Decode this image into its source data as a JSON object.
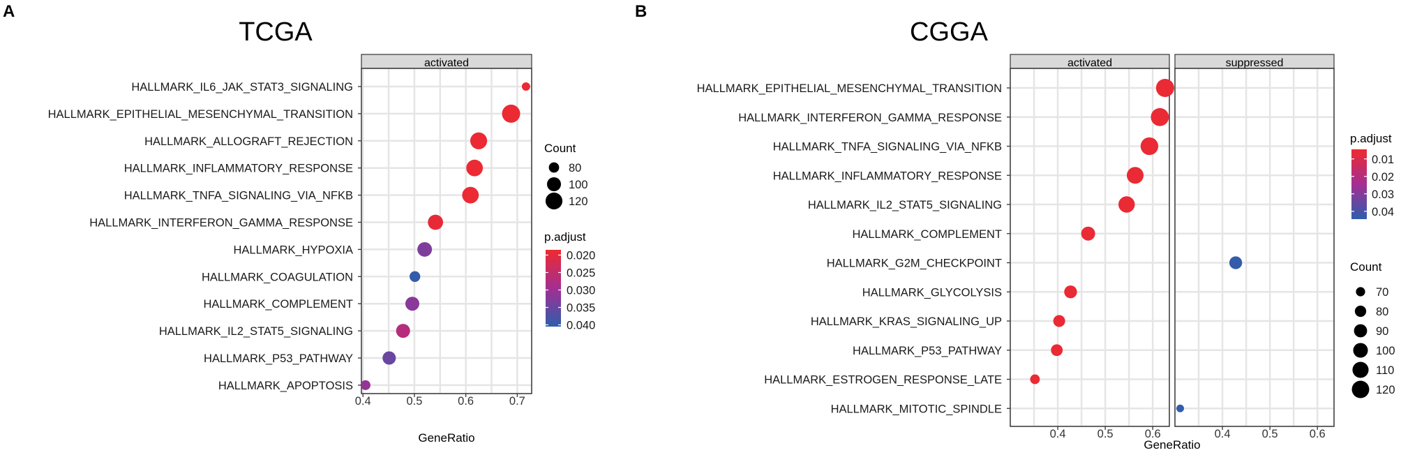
{
  "colors": {
    "high": "#ee2a2f",
    "mid": "#a42e93",
    "low": "#2e5eac",
    "grid": "#e5e5e5",
    "strip": "#d9d9d9"
  },
  "chart_data": [
    {
      "type": "scatter",
      "panel_label": "A",
      "title": "TCGA",
      "xlabel": "GeneRatio",
      "xticks": [
        0.4,
        0.5,
        0.6,
        0.7
      ],
      "xlim": [
        0.397,
        0.728
      ],
      "facets": [
        "activated"
      ],
      "categories": [
        "HALLMARK_IL6_JAK_STAT3_SIGNALING",
        "HALLMARK_EPITHELIAL_MESENCHYMAL_TRANSITION",
        "HALLMARK_ALLOGRAFT_REJECTION",
        "HALLMARK_INFLAMMATORY_RESPONSE",
        "HALLMARK_TNFA_SIGNALING_VIA_NFKB",
        "HALLMARK_INTERFERON_GAMMA_RESPONSE",
        "HALLMARK_HYPOXIA",
        "HALLMARK_COAGULATION",
        "HALLMARK_COMPLEMENT",
        "HALLMARK_IL2_STAT5_SIGNALING",
        "HALLMARK_P53_PATHWAY",
        "HALLMARK_APOPTOSIS"
      ],
      "points": [
        {
          "term": 0,
          "facet": 0,
          "x": 0.717,
          "count": 72,
          "padj": 0.019
        },
        {
          "term": 1,
          "facet": 0,
          "x": 0.688,
          "count": 130,
          "padj": 0.019
        },
        {
          "term": 2,
          "facet": 0,
          "x": 0.625,
          "count": 120,
          "padj": 0.019
        },
        {
          "term": 3,
          "facet": 0,
          "x": 0.617,
          "count": 118,
          "padj": 0.019
        },
        {
          "term": 4,
          "facet": 0,
          "x": 0.609,
          "count": 118,
          "padj": 0.019
        },
        {
          "term": 5,
          "facet": 0,
          "x": 0.541,
          "count": 108,
          "padj": 0.0195
        },
        {
          "term": 6,
          "facet": 0,
          "x": 0.52,
          "count": 104,
          "padj": 0.033
        },
        {
          "term": 7,
          "facet": 0,
          "x": 0.501,
          "count": 82,
          "padj": 0.04
        },
        {
          "term": 8,
          "facet": 0,
          "x": 0.496,
          "count": 100,
          "padj": 0.032
        },
        {
          "term": 9,
          "facet": 0,
          "x": 0.478,
          "count": 100,
          "padj": 0.027
        },
        {
          "term": 10,
          "facet": 0,
          "x": 0.451,
          "count": 96,
          "padj": 0.035
        },
        {
          "term": 11,
          "facet": 0,
          "x": 0.405,
          "count": 78,
          "padj": 0.031
        }
      ],
      "size_legend": {
        "title": "Count",
        "values": [
          80,
          100,
          120
        ],
        "range": [
          72,
          130
        ]
      },
      "color_legend": {
        "title": "p.adjust",
        "ticks": [
          0.02,
          0.025,
          0.03,
          0.035,
          0.04
        ],
        "tick_labels": [
          "0.020",
          "0.025",
          "0.030",
          "0.035",
          "0.040"
        ],
        "range": [
          0.0185,
          0.0405
        ]
      }
    },
    {
      "type": "scatter",
      "panel_label": "B",
      "title": "CGGA",
      "xlabel": "GeneRatio",
      "xticks": [
        0.4,
        0.5,
        0.6
      ],
      "xlim": [
        0.3,
        0.635
      ],
      "facets": [
        "activated",
        "suppressed"
      ],
      "categories": [
        "HALLMARK_EPITHELIAL_MESENCHYMAL_TRANSITION",
        "HALLMARK_INTERFERON_GAMMA_RESPONSE",
        "HALLMARK_TNFA_SIGNALING_VIA_NFKB",
        "HALLMARK_INFLAMMATORY_RESPONSE",
        "HALLMARK_IL2_STAT5_SIGNALING",
        "HALLMARK_COMPLEMENT",
        "HALLMARK_G2M_CHECKPOINT",
        "HALLMARK_GLYCOLYSIS",
        "HALLMARK_KRAS_SIGNALING_UP",
        "HALLMARK_P53_PATHWAY",
        "HALLMARK_ESTROGEN_RESPONSE_LATE",
        "HALLMARK_MITOTIC_SPINDLE"
      ],
      "points": [
        {
          "term": 0,
          "facet": 0,
          "x": 0.626,
          "count": 126,
          "padj": 0.005
        },
        {
          "term": 1,
          "facet": 0,
          "x": 0.615,
          "count": 125,
          "padj": 0.005
        },
        {
          "term": 2,
          "facet": 0,
          "x": 0.593,
          "count": 122,
          "padj": 0.005
        },
        {
          "term": 3,
          "facet": 0,
          "x": 0.563,
          "count": 115,
          "padj": 0.005
        },
        {
          "term": 4,
          "facet": 0,
          "x": 0.545,
          "count": 112,
          "padj": 0.005
        },
        {
          "term": 5,
          "facet": 0,
          "x": 0.464,
          "count": 95,
          "padj": 0.005
        },
        {
          "term": 7,
          "facet": 0,
          "x": 0.427,
          "count": 88,
          "padj": 0.005
        },
        {
          "term": 8,
          "facet": 0,
          "x": 0.403,
          "count": 83,
          "padj": 0.005
        },
        {
          "term": 9,
          "facet": 0,
          "x": 0.398,
          "count": 82,
          "padj": 0.005
        },
        {
          "term": 10,
          "facet": 0,
          "x": 0.352,
          "count": 72,
          "padj": 0.005
        },
        {
          "term": 6,
          "facet": 1,
          "x": 0.428,
          "count": 88,
          "padj": 0.043
        },
        {
          "term": 11,
          "facet": 1,
          "x": 0.311,
          "count": 64,
          "padj": 0.043
        }
      ],
      "size_legend": {
        "title": "Count",
        "values": [
          70,
          80,
          90,
          100,
          110,
          120
        ],
        "range": [
          64,
          126
        ]
      },
      "color_legend": {
        "title": "p.adjust",
        "ticks": [
          0.01,
          0.02,
          0.03,
          0.04
        ],
        "tick_labels": [
          "0.01",
          "0.02",
          "0.03",
          "0.04"
        ],
        "range": [
          0.004,
          0.044
        ]
      }
    }
  ]
}
